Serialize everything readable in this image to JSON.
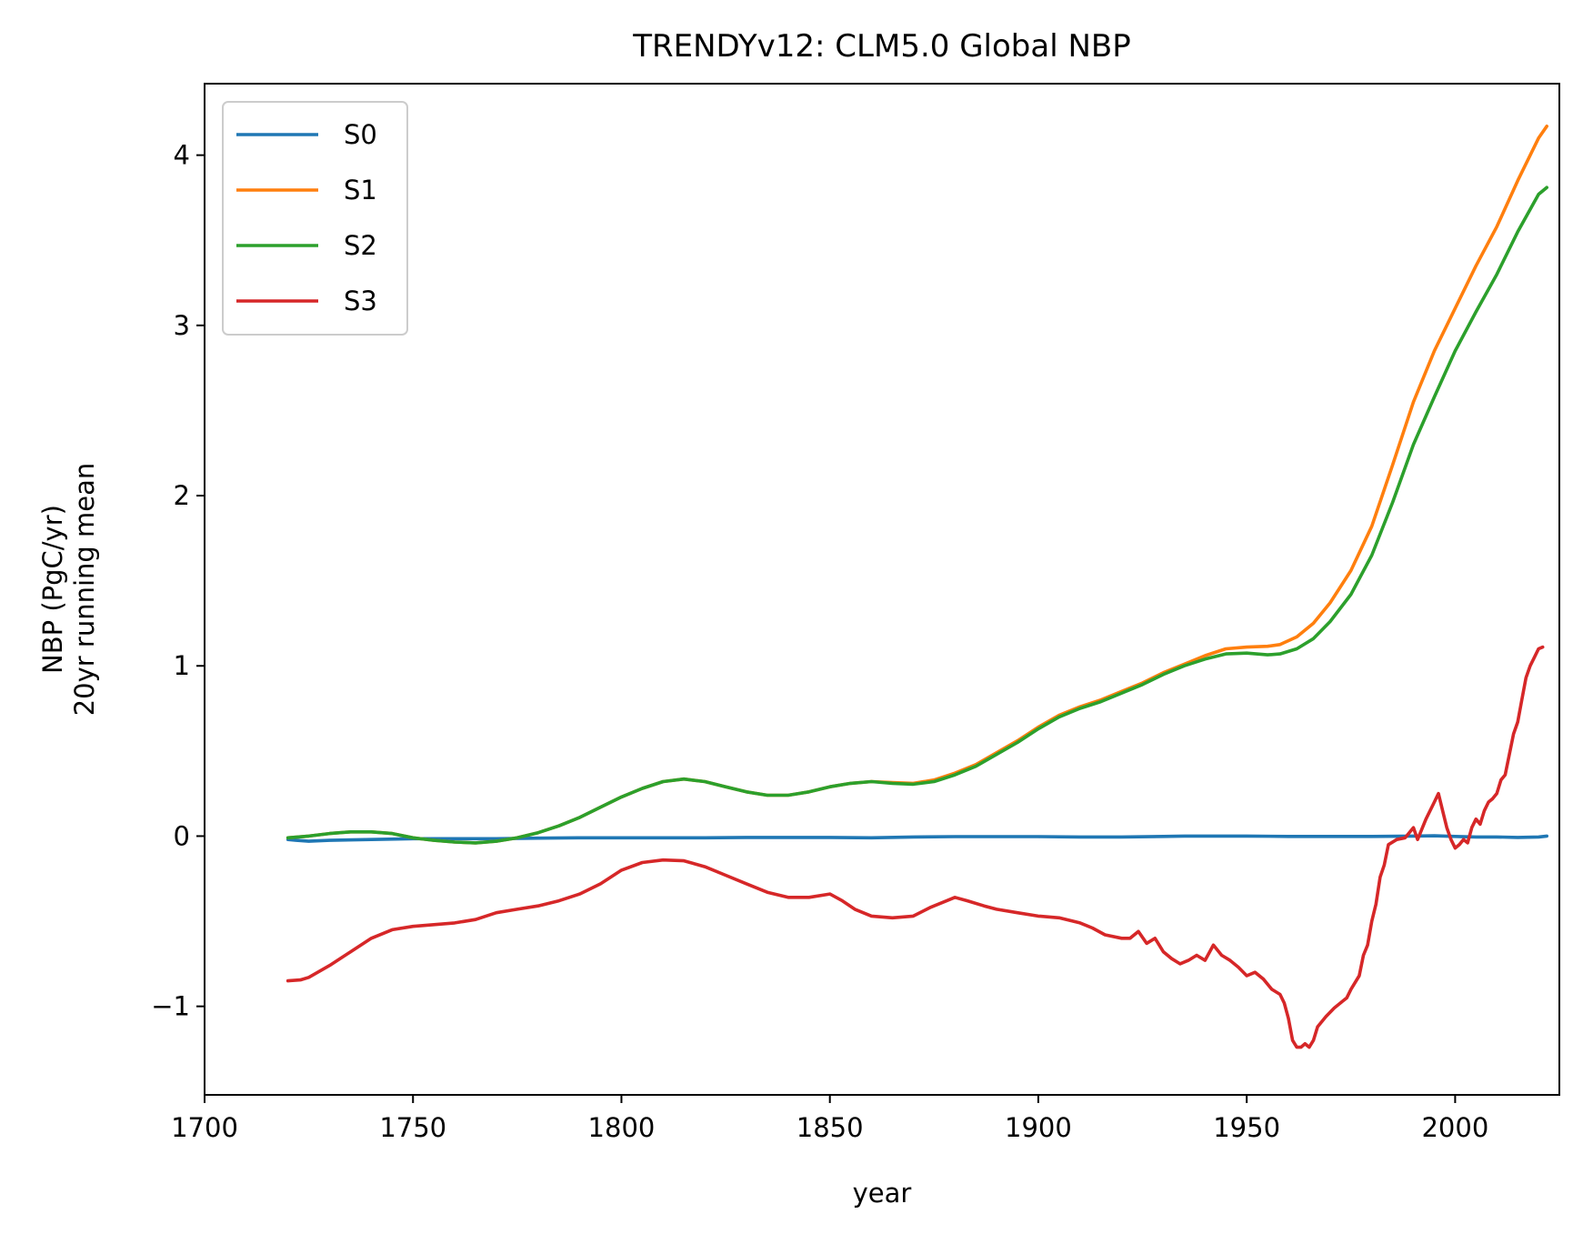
{
  "chart_data": {
    "type": "line",
    "title": "TRENDYv12: CLM5.0 Global NBP",
    "xlabel": "year",
    "ylabel": [
      "NBP (PgC/yr)",
      "20yr running mean"
    ],
    "xlim": [
      1700,
      2025
    ],
    "ylim": [
      -1.52,
      4.42
    ],
    "xticks": [
      1700,
      1750,
      1800,
      1850,
      1900,
      1950,
      2000
    ],
    "yticks": [
      -1,
      0,
      1,
      2,
      3,
      4
    ],
    "ytick_labels": [
      "−1",
      "0",
      "1",
      "2",
      "3",
      "4"
    ],
    "grid": false,
    "legend_position": "top-left",
    "series": [
      {
        "name": "S0",
        "color": "#1f77b4",
        "points": [
          [
            1720,
            -0.02
          ],
          [
            1722,
            -0.025
          ],
          [
            1725,
            -0.03
          ],
          [
            1730,
            -0.025
          ],
          [
            1740,
            -0.02
          ],
          [
            1750,
            -0.015
          ],
          [
            1760,
            -0.015
          ],
          [
            1770,
            -0.015
          ],
          [
            1780,
            -0.012
          ],
          [
            1790,
            -0.01
          ],
          [
            1800,
            -0.01
          ],
          [
            1810,
            -0.01
          ],
          [
            1820,
            -0.01
          ],
          [
            1830,
            -0.008
          ],
          [
            1840,
            -0.008
          ],
          [
            1850,
            -0.008
          ],
          [
            1860,
            -0.01
          ],
          [
            1870,
            -0.005
          ],
          [
            1880,
            -0.003
          ],
          [
            1890,
            -0.003
          ],
          [
            1900,
            -0.003
          ],
          [
            1910,
            -0.005
          ],
          [
            1920,
            -0.005
          ],
          [
            1930,
            -0.002
          ],
          [
            1935,
            0.0
          ],
          [
            1940,
            0.0
          ],
          [
            1950,
            0.0
          ],
          [
            1960,
            -0.002
          ],
          [
            1970,
            -0.002
          ],
          [
            1980,
            -0.002
          ],
          [
            1990,
            0.0
          ],
          [
            1995,
            0.002
          ],
          [
            2000,
            -0.002
          ],
          [
            2005,
            -0.005
          ],
          [
            2010,
            -0.005
          ],
          [
            2015,
            -0.008
          ],
          [
            2020,
            -0.005
          ],
          [
            2022,
            0.0
          ]
        ]
      },
      {
        "name": "S1",
        "color": "#ff7f0e",
        "points": [
          [
            1720,
            -0.01
          ],
          [
            1725,
            0.0
          ],
          [
            1730,
            0.015
          ],
          [
            1735,
            0.025
          ],
          [
            1740,
            0.025
          ],
          [
            1745,
            0.015
          ],
          [
            1750,
            -0.01
          ],
          [
            1755,
            -0.025
          ],
          [
            1760,
            -0.035
          ],
          [
            1765,
            -0.04
          ],
          [
            1770,
            -0.03
          ],
          [
            1775,
            -0.01
          ],
          [
            1780,
            0.02
          ],
          [
            1785,
            0.06
          ],
          [
            1790,
            0.11
          ],
          [
            1795,
            0.17
          ],
          [
            1800,
            0.23
          ],
          [
            1805,
            0.28
          ],
          [
            1810,
            0.32
          ],
          [
            1815,
            0.335
          ],
          [
            1820,
            0.32
          ],
          [
            1825,
            0.29
          ],
          [
            1830,
            0.26
          ],
          [
            1835,
            0.24
          ],
          [
            1840,
            0.24
          ],
          [
            1845,
            0.26
          ],
          [
            1850,
            0.29
          ],
          [
            1855,
            0.31
          ],
          [
            1860,
            0.32
          ],
          [
            1865,
            0.315
          ],
          [
            1870,
            0.31
          ],
          [
            1875,
            0.33
          ],
          [
            1880,
            0.37
          ],
          [
            1885,
            0.42
          ],
          [
            1890,
            0.49
          ],
          [
            1895,
            0.56
          ],
          [
            1900,
            0.64
          ],
          [
            1905,
            0.71
          ],
          [
            1910,
            0.76
          ],
          [
            1915,
            0.8
          ],
          [
            1920,
            0.85
          ],
          [
            1925,
            0.9
          ],
          [
            1930,
            0.96
          ],
          [
            1935,
            1.01
          ],
          [
            1940,
            1.06
          ],
          [
            1945,
            1.1
          ],
          [
            1950,
            1.11
          ],
          [
            1955,
            1.115
          ],
          [
            1958,
            1.125
          ],
          [
            1962,
            1.17
          ],
          [
            1966,
            1.25
          ],
          [
            1970,
            1.37
          ],
          [
            1975,
            1.56
          ],
          [
            1980,
            1.82
          ],
          [
            1985,
            2.18
          ],
          [
            1990,
            2.55
          ],
          [
            1995,
            2.85
          ],
          [
            2000,
            3.1
          ],
          [
            2005,
            3.35
          ],
          [
            2010,
            3.58
          ],
          [
            2015,
            3.85
          ],
          [
            2020,
            4.1
          ],
          [
            2022,
            4.17
          ]
        ]
      },
      {
        "name": "S2",
        "color": "#2ca02c",
        "points": [
          [
            1720,
            -0.01
          ],
          [
            1725,
            0.0
          ],
          [
            1730,
            0.015
          ],
          [
            1735,
            0.025
          ],
          [
            1740,
            0.025
          ],
          [
            1745,
            0.015
          ],
          [
            1750,
            -0.01
          ],
          [
            1755,
            -0.025
          ],
          [
            1760,
            -0.035
          ],
          [
            1765,
            -0.04
          ],
          [
            1770,
            -0.03
          ],
          [
            1775,
            -0.01
          ],
          [
            1780,
            0.02
          ],
          [
            1785,
            0.06
          ],
          [
            1790,
            0.11
          ],
          [
            1795,
            0.17
          ],
          [
            1800,
            0.23
          ],
          [
            1805,
            0.28
          ],
          [
            1810,
            0.32
          ],
          [
            1815,
            0.335
          ],
          [
            1820,
            0.32
          ],
          [
            1825,
            0.29
          ],
          [
            1830,
            0.26
          ],
          [
            1835,
            0.24
          ],
          [
            1840,
            0.24
          ],
          [
            1845,
            0.26
          ],
          [
            1850,
            0.29
          ],
          [
            1855,
            0.31
          ],
          [
            1860,
            0.32
          ],
          [
            1865,
            0.31
          ],
          [
            1870,
            0.305
          ],
          [
            1875,
            0.32
          ],
          [
            1880,
            0.36
          ],
          [
            1885,
            0.41
          ],
          [
            1890,
            0.48
          ],
          [
            1895,
            0.55
          ],
          [
            1900,
            0.63
          ],
          [
            1905,
            0.7
          ],
          [
            1910,
            0.75
          ],
          [
            1915,
            0.79
          ],
          [
            1920,
            0.84
          ],
          [
            1925,
            0.89
          ],
          [
            1930,
            0.95
          ],
          [
            1935,
            1.0
          ],
          [
            1940,
            1.04
          ],
          [
            1945,
            1.07
          ],
          [
            1950,
            1.075
          ],
          [
            1955,
            1.065
          ],
          [
            1958,
            1.07
          ],
          [
            1962,
            1.1
          ],
          [
            1966,
            1.16
          ],
          [
            1970,
            1.26
          ],
          [
            1975,
            1.42
          ],
          [
            1980,
            1.65
          ],
          [
            1985,
            1.96
          ],
          [
            1990,
            2.3
          ],
          [
            1995,
            2.58
          ],
          [
            2000,
            2.85
          ],
          [
            2005,
            3.08
          ],
          [
            2010,
            3.3
          ],
          [
            2015,
            3.55
          ],
          [
            2020,
            3.77
          ],
          [
            2022,
            3.81
          ]
        ]
      },
      {
        "name": "S3",
        "color": "#d62728",
        "points": [
          [
            1720,
            -0.85
          ],
          [
            1723,
            -0.845
          ],
          [
            1725,
            -0.83
          ],
          [
            1730,
            -0.76
          ],
          [
            1735,
            -0.68
          ],
          [
            1740,
            -0.6
          ],
          [
            1745,
            -0.55
          ],
          [
            1750,
            -0.53
          ],
          [
            1755,
            -0.52
          ],
          [
            1760,
            -0.51
          ],
          [
            1765,
            -0.49
          ],
          [
            1770,
            -0.45
          ],
          [
            1775,
            -0.43
          ],
          [
            1780,
            -0.41
          ],
          [
            1785,
            -0.38
          ],
          [
            1790,
            -0.34
          ],
          [
            1795,
            -0.28
          ],
          [
            1800,
            -0.2
          ],
          [
            1805,
            -0.155
          ],
          [
            1810,
            -0.14
          ],
          [
            1815,
            -0.145
          ],
          [
            1820,
            -0.18
          ],
          [
            1825,
            -0.23
          ],
          [
            1830,
            -0.28
          ],
          [
            1835,
            -0.33
          ],
          [
            1840,
            -0.36
          ],
          [
            1845,
            -0.36
          ],
          [
            1850,
            -0.34
          ],
          [
            1853,
            -0.38
          ],
          [
            1856,
            -0.43
          ],
          [
            1860,
            -0.47
          ],
          [
            1865,
            -0.48
          ],
          [
            1870,
            -0.47
          ],
          [
            1874,
            -0.42
          ],
          [
            1878,
            -0.38
          ],
          [
            1880,
            -0.36
          ],
          [
            1883,
            -0.38
          ],
          [
            1887,
            -0.41
          ],
          [
            1890,
            -0.43
          ],
          [
            1895,
            -0.45
          ],
          [
            1900,
            -0.47
          ],
          [
            1905,
            -0.48
          ],
          [
            1910,
            -0.51
          ],
          [
            1913,
            -0.54
          ],
          [
            1916,
            -0.58
          ],
          [
            1920,
            -0.6
          ],
          [
            1922,
            -0.6
          ],
          [
            1924,
            -0.56
          ],
          [
            1926,
            -0.63
          ],
          [
            1928,
            -0.6
          ],
          [
            1930,
            -0.68
          ],
          [
            1932,
            -0.72
          ],
          [
            1934,
            -0.75
          ],
          [
            1936,
            -0.73
          ],
          [
            1938,
            -0.7
          ],
          [
            1940,
            -0.73
          ],
          [
            1942,
            -0.64
          ],
          [
            1944,
            -0.7
          ],
          [
            1946,
            -0.73
          ],
          [
            1948,
            -0.77
          ],
          [
            1950,
            -0.82
          ],
          [
            1952,
            -0.8
          ],
          [
            1954,
            -0.84
          ],
          [
            1956,
            -0.9
          ],
          [
            1958,
            -0.93
          ],
          [
            1959,
            -0.98
          ],
          [
            1960,
            -1.07
          ],
          [
            1961,
            -1.2
          ],
          [
            1962,
            -1.24
          ],
          [
            1963,
            -1.24
          ],
          [
            1964,
            -1.22
          ],
          [
            1965,
            -1.24
          ],
          [
            1966,
            -1.2
          ],
          [
            1967,
            -1.12
          ],
          [
            1969,
            -1.06
          ],
          [
            1971,
            -1.01
          ],
          [
            1973,
            -0.97
          ],
          [
            1974,
            -0.95
          ],
          [
            1975,
            -0.9
          ],
          [
            1977,
            -0.82
          ],
          [
            1978,
            -0.7
          ],
          [
            1979,
            -0.64
          ],
          [
            1980,
            -0.5
          ],
          [
            1981,
            -0.4
          ],
          [
            1982,
            -0.24
          ],
          [
            1983,
            -0.17
          ],
          [
            1984,
            -0.05
          ],
          [
            1986,
            -0.02
          ],
          [
            1988,
            -0.01
          ],
          [
            1990,
            0.05
          ],
          [
            1991,
            -0.02
          ],
          [
            1993,
            0.1
          ],
          [
            1995,
            0.2
          ],
          [
            1996,
            0.25
          ],
          [
            1997,
            0.15
          ],
          [
            1998,
            0.05
          ],
          [
            1999,
            -0.02
          ],
          [
            2000,
            -0.07
          ],
          [
            2001,
            -0.05
          ],
          [
            2002,
            -0.02
          ],
          [
            2003,
            -0.04
          ],
          [
            2004,
            0.05
          ],
          [
            2005,
            0.1
          ],
          [
            2006,
            0.07
          ],
          [
            2007,
            0.15
          ],
          [
            2008,
            0.2
          ],
          [
            2009,
            0.22
          ],
          [
            2010,
            0.25
          ],
          [
            2011,
            0.33
          ],
          [
            2012,
            0.36
          ],
          [
            2013,
            0.48
          ],
          [
            2014,
            0.6
          ],
          [
            2015,
            0.67
          ],
          [
            2016,
            0.8
          ],
          [
            2017,
            0.93
          ],
          [
            2018,
            1.0
          ],
          [
            2019,
            1.05
          ],
          [
            2020,
            1.1
          ],
          [
            2021,
            1.11
          ]
        ]
      }
    ]
  }
}
